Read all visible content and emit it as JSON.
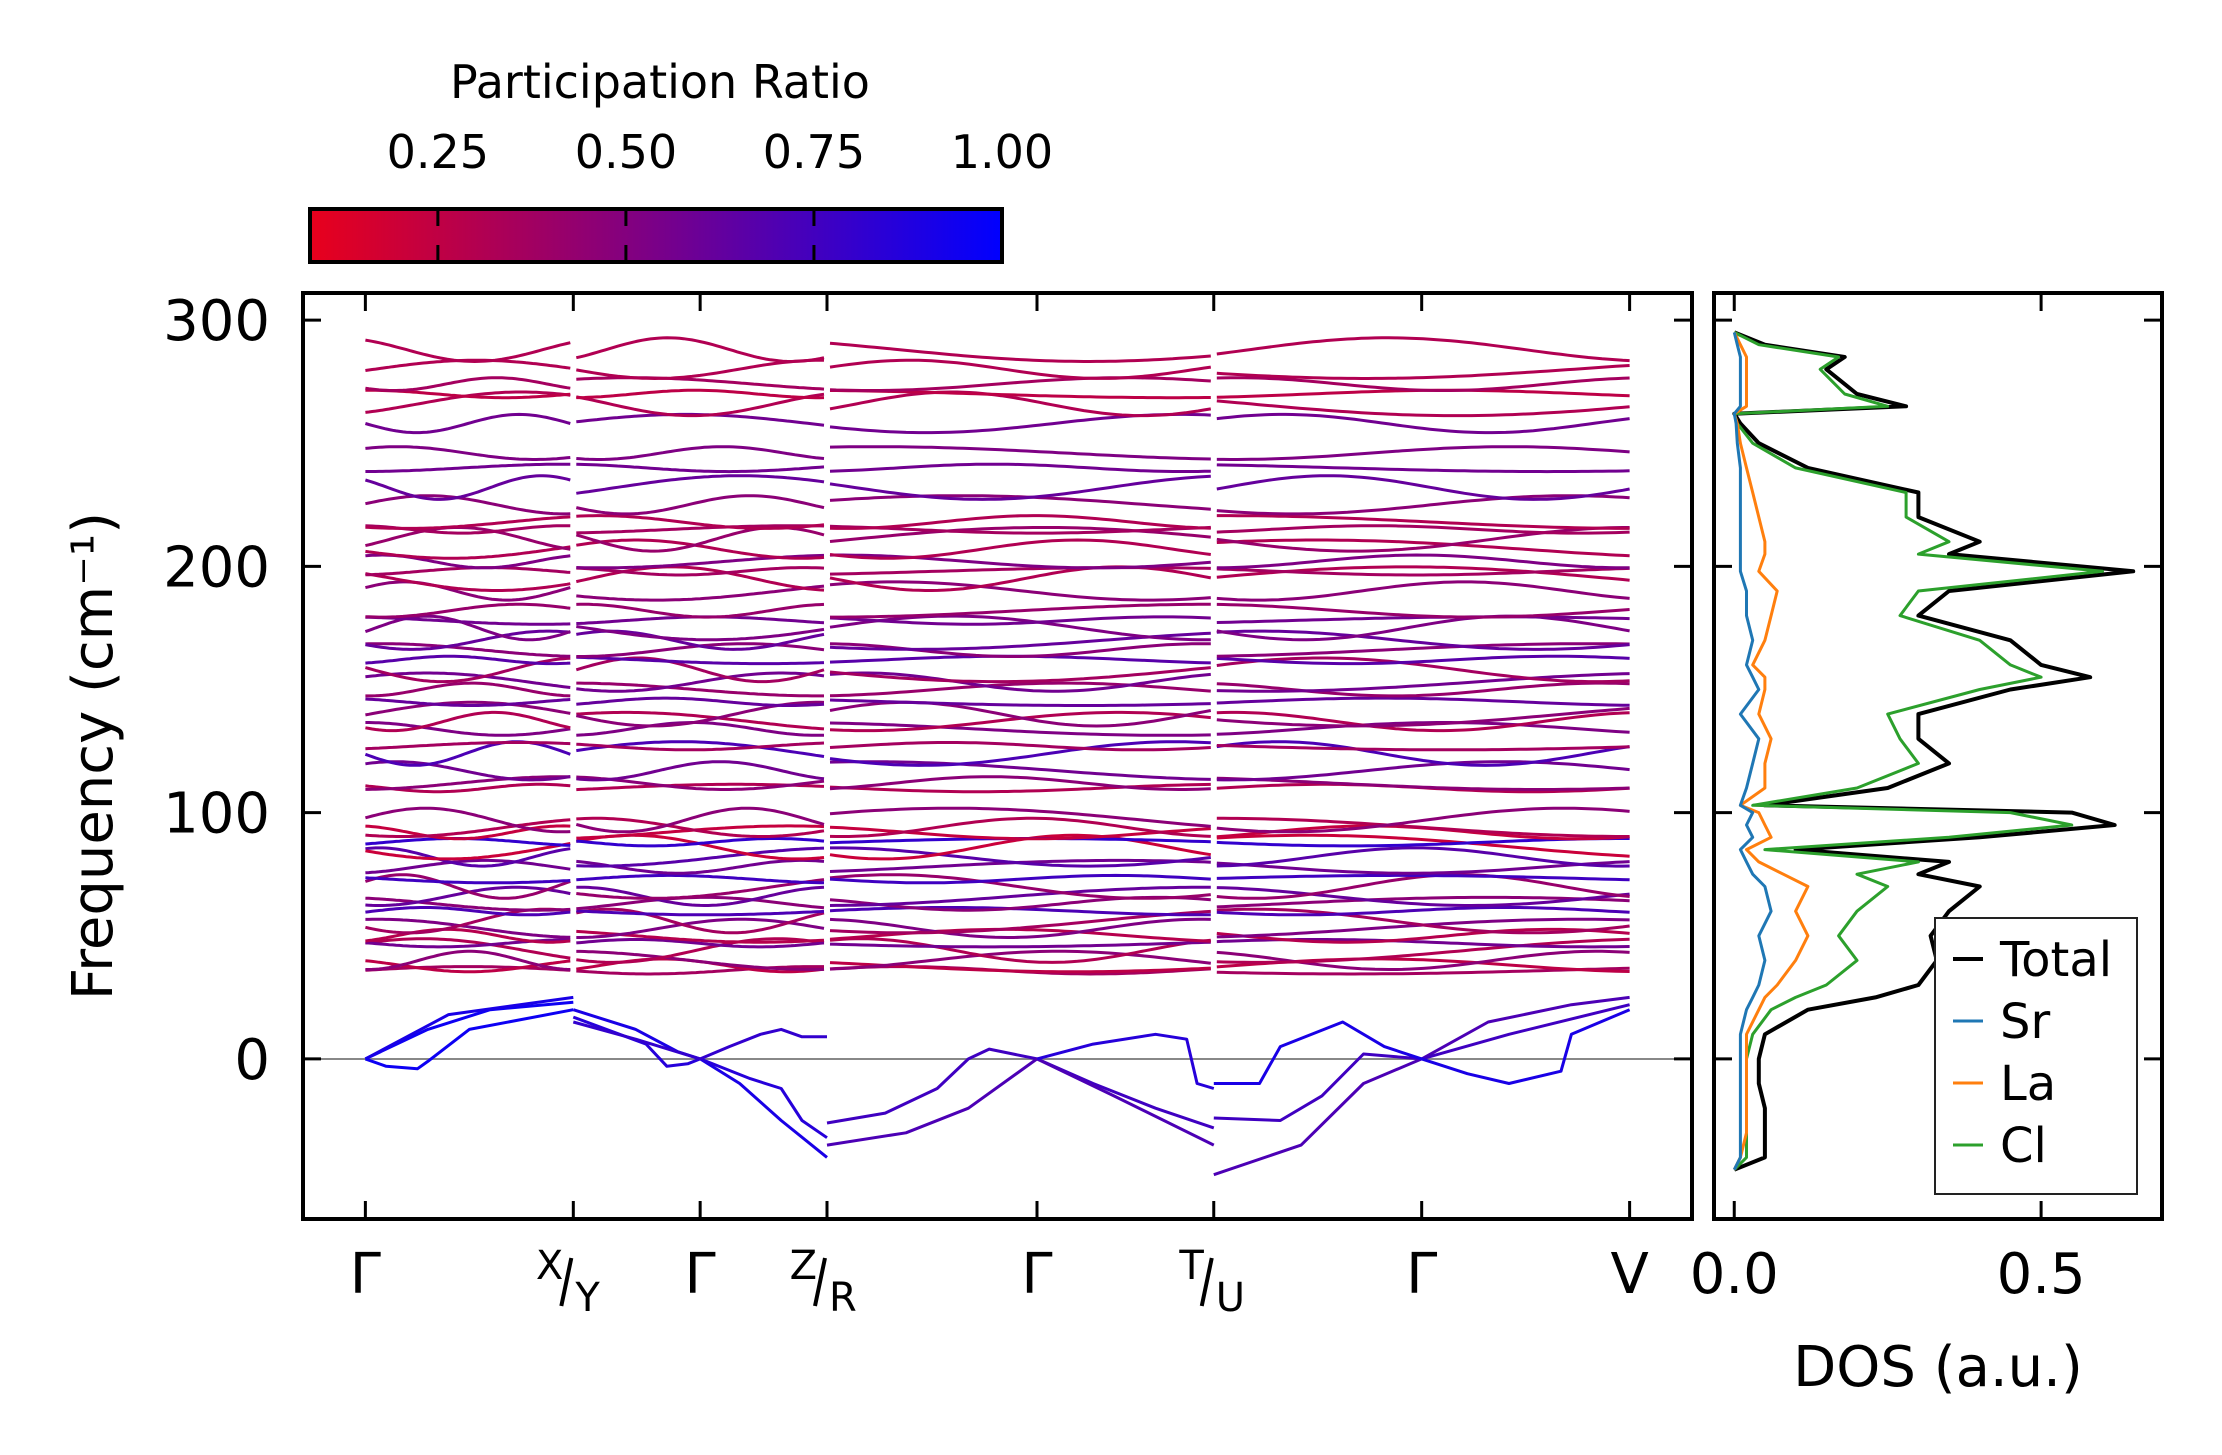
{
  "chart_data": [
    {
      "type": "line",
      "title": "",
      "ylabel": "Frequency (cm⁻¹)",
      "xlabel": "",
      "ylim": [
        -65,
        311
      ],
      "yticks": [
        "0",
        "100",
        "200",
        "300"
      ],
      "ytick_values": [
        0,
        100,
        200,
        300
      ],
      "xlim": [
        -0.3,
        6.38
      ],
      "kpoints": [
        {
          "x": 0,
          "label": "Γ"
        },
        {
          "x": 1,
          "top": "X",
          "bottom": "Y"
        },
        {
          "x": 1.61,
          "label": "Γ"
        },
        {
          "x": 2.22,
          "top": "Z",
          "bottom": "R"
        },
        {
          "x": 3.23,
          "label": "Γ"
        },
        {
          "x": 4.08,
          "top": "T",
          "bottom": "U"
        },
        {
          "x": 5.08,
          "label": "Γ"
        },
        {
          "x": 6.08,
          "label": "V"
        }
      ],
      "paths": [
        [
          0,
          1
        ],
        [
          1,
          2.22
        ],
        [
          2.22,
          4.08
        ],
        [
          4.08,
          6.08
        ]
      ],
      "colorbar": {
        "title": "Participation Ratio",
        "range": [
          0.08,
          1.0
        ],
        "ticks": [
          "0.25",
          "0.50",
          "0.75",
          "1.00"
        ],
        "tick_values": [
          0.25,
          0.5,
          0.75,
          1.0
        ],
        "low_color": "#e8001c",
        "high_color": "#0000ff"
      },
      "optical_bands": {
        "freq": [
          36,
          38,
          40,
          44,
          47,
          50,
          53,
          56,
          60,
          63,
          66,
          70,
          73,
          78,
          82,
          86,
          88,
          92,
          94,
          97,
          110,
          112,
          117,
          124,
          127,
          134,
          137,
          140,
          145,
          150,
          153,
          158,
          162,
          166,
          170,
          175,
          178,
          182,
          190,
          195,
          198,
          202,
          207,
          211,
          215,
          218,
          225,
          232,
          240,
          246,
          258,
          266,
          270,
          274,
          280,
          288
        ],
        "participation_ratio": [
          0.35,
          0.25,
          0.45,
          0.3,
          0.55,
          0.28,
          0.5,
          0.35,
          0.7,
          0.45,
          0.6,
          0.4,
          0.75,
          0.55,
          0.65,
          0.2,
          0.8,
          0.22,
          0.3,
          0.45,
          0.3,
          0.45,
          0.55,
          0.7,
          0.35,
          0.5,
          0.3,
          0.45,
          0.6,
          0.4,
          0.55,
          0.35,
          0.65,
          0.45,
          0.6,
          0.5,
          0.55,
          0.4,
          0.45,
          0.3,
          0.35,
          0.5,
          0.3,
          0.4,
          0.35,
          0.3,
          0.45,
          0.6,
          0.55,
          0.5,
          0.55,
          0.3,
          0.25,
          0.35,
          0.3,
          0.3
        ]
      },
      "acoustic_bands": [
        {
          "pr": 0.95,
          "points": [
            [
              0,
              0
            ],
            [
              0.3,
              12
            ],
            [
              0.6,
              20
            ],
            [
              1,
              23
            ]
          ]
        },
        {
          "pr": 0.9,
          "points": [
            [
              0,
              0
            ],
            [
              0.4,
              18
            ],
            [
              1,
              25
            ]
          ]
        },
        {
          "pr": 0.95,
          "points": [
            [
              0,
              0
            ],
            [
              0.1,
              -3
            ],
            [
              0.25,
              -4
            ],
            [
              0.3,
              -1
            ],
            [
              0.5,
              12
            ],
            [
              1,
              20
            ]
          ]
        },
        {
          "pr": 0.9,
          "points": [
            [
              1,
              20
            ],
            [
              1.3,
              12
            ],
            [
              1.5,
              3
            ],
            [
              1.61,
              0
            ],
            [
              1.8,
              -10
            ],
            [
              2.0,
              -25
            ],
            [
              2.22,
              -40
            ]
          ]
        },
        {
          "pr": 0.85,
          "points": [
            [
              1,
              17
            ],
            [
              1.35,
              6
            ],
            [
              1.45,
              -3
            ],
            [
              1.55,
              -2
            ],
            [
              1.61,
              0
            ],
            [
              1.85,
              -8
            ],
            [
              2.0,
              -12
            ],
            [
              2.1,
              -25
            ],
            [
              2.22,
              -32
            ]
          ]
        },
        {
          "pr": 0.8,
          "points": [
            [
              1,
              15
            ],
            [
              1.3,
              8
            ],
            [
              1.61,
              0
            ],
            [
              1.75,
              5
            ],
            [
              1.9,
              10
            ],
            [
              2.0,
              12
            ],
            [
              2.1,
              9
            ],
            [
              2.22,
              9
            ]
          ]
        },
        {
          "pr": 0.75,
          "points": [
            [
              2.22,
              -26
            ],
            [
              2.5,
              -22
            ],
            [
              2.75,
              -12
            ],
            [
              2.9,
              0
            ],
            [
              3.0,
              4
            ],
            [
              3.23,
              0
            ],
            [
              3.5,
              -10
            ],
            [
              3.8,
              -20
            ],
            [
              4.08,
              -28
            ]
          ]
        },
        {
          "pr": 0.7,
          "points": [
            [
              2.22,
              -35
            ],
            [
              2.6,
              -30
            ],
            [
              2.9,
              -20
            ],
            [
              3.23,
              0
            ],
            [
              3.6,
              -15
            ],
            [
              4.08,
              -35
            ]
          ]
        },
        {
          "pr": 0.85,
          "points": [
            [
              3.23,
              0
            ],
            [
              3.5,
              6
            ],
            [
              3.8,
              10
            ],
            [
              3.95,
              8
            ],
            [
              4.0,
              -10
            ],
            [
              4.08,
              -12
            ]
          ]
        },
        {
          "pr": 0.7,
          "points": [
            [
              4.08,
              -47
            ],
            [
              4.5,
              -35
            ],
            [
              4.8,
              -10
            ],
            [
              5.08,
              0
            ],
            [
              5.4,
              15
            ],
            [
              5.8,
              22
            ],
            [
              6.08,
              25
            ]
          ]
        },
        {
          "pr": 0.75,
          "points": [
            [
              4.08,
              -24
            ],
            [
              4.4,
              -25
            ],
            [
              4.6,
              -15
            ],
            [
              4.8,
              2
            ],
            [
              5.08,
              0
            ],
            [
              5.5,
              10
            ],
            [
              6.08,
              22
            ]
          ]
        },
        {
          "pr": 0.9,
          "points": [
            [
              4.08,
              -10
            ],
            [
              4.3,
              -10
            ],
            [
              4.4,
              5
            ],
            [
              4.7,
              15
            ],
            [
              4.9,
              5
            ],
            [
              5.08,
              0
            ],
            [
              5.3,
              -6
            ],
            [
              5.5,
              -10
            ],
            [
              5.75,
              -5
            ],
            [
              5.8,
              10
            ],
            [
              6.08,
              20
            ]
          ]
        }
      ]
    },
    {
      "type": "line",
      "xlabel": "DOS (a.u.)",
      "xlim": [
        -0.033,
        0.697
      ],
      "xticks": [
        "0.0",
        "0.5"
      ],
      "xtick_values": [
        0,
        0.5
      ],
      "ylim": [
        -65,
        311
      ],
      "legend_position": "bottom-right",
      "freq": [
        -45,
        -40,
        -30,
        -20,
        -10,
        0,
        10,
        20,
        25,
        30,
        40,
        50,
        60,
        70,
        75,
        80,
        85,
        90,
        95,
        100,
        103,
        110,
        120,
        130,
        140,
        150,
        155,
        160,
        170,
        180,
        190,
        198,
        205,
        210,
        220,
        230,
        240,
        250,
        258,
        262,
        265,
        270,
        280,
        285,
        290,
        295
      ],
      "series": [
        {
          "name": "Total",
          "color": "#000000",
          "values": [
            0,
            0.05,
            0.05,
            0.05,
            0.04,
            0.04,
            0.05,
            0.12,
            0.23,
            0.3,
            0.33,
            0.32,
            0.35,
            0.4,
            0.3,
            0.35,
            0.1,
            0.4,
            0.62,
            0.55,
            0.05,
            0.25,
            0.35,
            0.3,
            0.3,
            0.45,
            0.58,
            0.5,
            0.45,
            0.3,
            0.35,
            0.65,
            0.35,
            0.4,
            0.3,
            0.3,
            0.12,
            0.04,
            0.01,
            0,
            0.28,
            0.2,
            0.15,
            0.18,
            0.05,
            0
          ]
        },
        {
          "name": "Sr",
          "color": "#1f77b4",
          "values": [
            0,
            0.01,
            0.01,
            0.01,
            0.01,
            0.01,
            0.01,
            0.02,
            0.03,
            0.04,
            0.05,
            0.04,
            0.06,
            0.05,
            0.03,
            0.02,
            0.01,
            0.03,
            0.02,
            0.03,
            0.01,
            0.02,
            0.03,
            0.04,
            0.01,
            0.04,
            0.03,
            0.02,
            0.03,
            0.02,
            0.02,
            0.01,
            0.01,
            0.01,
            0.01,
            0.01,
            0.01,
            0.005,
            0.003,
            0,
            0.01,
            0.01,
            0.01,
            0.01,
            0.005,
            0
          ]
        },
        {
          "name": "La",
          "color": "#ff7f0e",
          "values": [
            0,
            0.01,
            0.02,
            0.02,
            0.02,
            0.02,
            0.02,
            0.04,
            0.05,
            0.07,
            0.1,
            0.12,
            0.1,
            0.12,
            0.08,
            0.04,
            0.02,
            0.06,
            0.05,
            0.04,
            0.01,
            0.05,
            0.05,
            0.06,
            0.04,
            0.05,
            0.05,
            0.03,
            0.05,
            0.06,
            0.07,
            0.04,
            0.05,
            0.05,
            0.04,
            0.03,
            0.02,
            0.01,
            0.005,
            0,
            0.02,
            0.02,
            0.02,
            0.02,
            0.01,
            0
          ]
        },
        {
          "name": "Cl",
          "color": "#2ca02c",
          "values": [
            0,
            0.02,
            0.02,
            0.02,
            0.02,
            0.02,
            0.03,
            0.06,
            0.1,
            0.15,
            0.2,
            0.17,
            0.2,
            0.25,
            0.2,
            0.3,
            0.05,
            0.35,
            0.55,
            0.45,
            0.03,
            0.2,
            0.3,
            0.27,
            0.25,
            0.4,
            0.5,
            0.45,
            0.4,
            0.27,
            0.3,
            0.6,
            0.3,
            0.35,
            0.28,
            0.28,
            0.1,
            0.03,
            0.005,
            0,
            0.25,
            0.18,
            0.14,
            0.17,
            0.04,
            0
          ]
        }
      ]
    }
  ]
}
